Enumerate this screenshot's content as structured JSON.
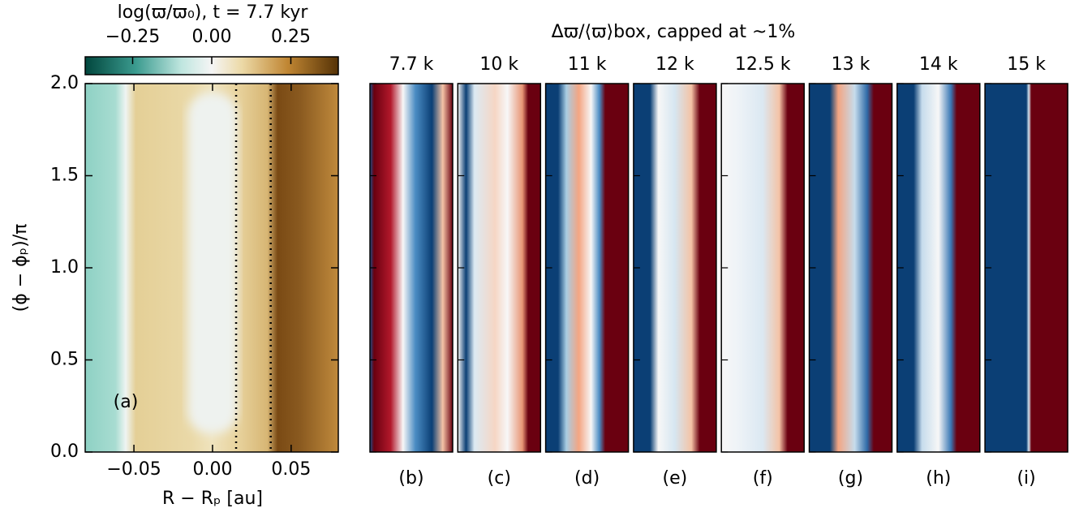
{
  "chart_data": [
    {
      "type": "heatmap",
      "colorbar_label": "log(ϖ/ϖ₀), t = 7.7 kyr",
      "clim": [
        -0.4,
        0.4
      ],
      "colorbar_ticks": [
        {
          "value": -0.25,
          "label": "−0.25"
        },
        {
          "value": 0,
          "label": "0.00"
        },
        {
          "value": 0.25,
          "label": "0.25"
        }
      ],
      "xlabel": "R − Rₚ [au]",
      "ylabel": "(ϕ − ϕₚ)/π",
      "xlim": [
        -0.081,
        0.08
      ],
      "ylim": [
        0,
        2
      ],
      "xticks": [
        {
          "value": -0.05,
          "label": "−0.05"
        },
        {
          "value": 0,
          "label": "0.00"
        },
        {
          "value": 0.05,
          "label": "0.05"
        }
      ],
      "yticks": [
        {
          "value": 0,
          "label": "0.0"
        },
        {
          "value": 0.5,
          "label": "0.5"
        },
        {
          "value": 1,
          "label": "1.0"
        },
        {
          "value": 1.5,
          "label": "1.5"
        },
        {
          "value": 2,
          "label": "2.0"
        }
      ],
      "vlines": [
        0.015,
        0.037
      ],
      "annotation": "(a)"
    },
    {
      "type": "panels",
      "title": "Δϖ/⟨ϖ⟩box, capped at ~1%",
      "times": [
        "7.7 k",
        "10 k",
        "11 k",
        "12 k",
        "12.5 k",
        "13 k",
        "14 k",
        "15 k"
      ],
      "labels": [
        "(b)",
        "(c)",
        "(d)",
        "(e)",
        "(f)",
        "(g)",
        "(h)",
        "(i)"
      ]
    }
  ]
}
